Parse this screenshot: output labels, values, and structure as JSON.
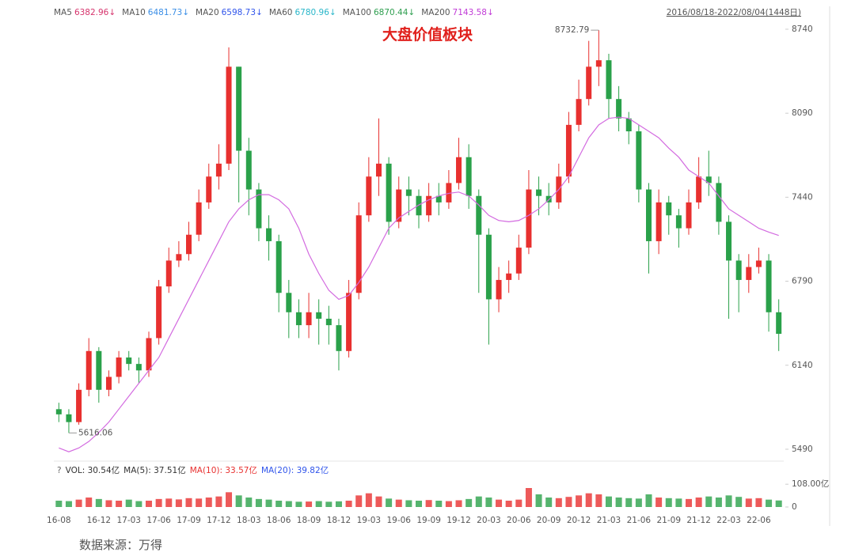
{
  "chart_data": {
    "type": "candlestick",
    "title": "大盘价值板块",
    "date_range": "2016/08/18-2022/08/04(1448日)",
    "source": "数据来源：万得",
    "ma_legend": [
      {
        "name": "MA5",
        "value": "6382.96",
        "trend": "↓",
        "color": "#d6336c"
      },
      {
        "name": "MA10",
        "value": "6481.73",
        "trend": "↓",
        "color": "#3a8ee6"
      },
      {
        "name": "MA20",
        "value": "6598.73",
        "trend": "↓",
        "color": "#2f54eb"
      },
      {
        "name": "MA60",
        "value": "6780.96",
        "trend": "↓",
        "color": "#29b6c9"
      },
      {
        "name": "MA100",
        "value": "6870.44",
        "trend": "↓",
        "color": "#2e9e4f"
      },
      {
        "name": "MA200",
        "value": "7143.58",
        "trend": "↓",
        "color": "#c03ad6"
      }
    ],
    "categories": [
      "16-08",
      null,
      null,
      null,
      "16-12",
      null,
      null,
      "17-03",
      null,
      null,
      "17-06",
      null,
      null,
      "17-09",
      null,
      null,
      "17-12",
      null,
      null,
      "18-03",
      null,
      null,
      "18-06",
      null,
      null,
      "18-09",
      null,
      null,
      "18-12",
      null,
      null,
      "19-03",
      null,
      null,
      "19-06",
      null,
      null,
      "19-09",
      null,
      null,
      "19-12",
      null,
      null,
      "20-03",
      null,
      null,
      "20-06",
      null,
      null,
      "20-09",
      null,
      null,
      "20-12",
      null,
      null,
      "21-03",
      null,
      null,
      "21-06",
      null,
      null,
      "21-09",
      null,
      null,
      "21-12",
      null,
      null,
      "22-03",
      null,
      null,
      "22-06",
      null,
      null
    ],
    "open": [
      5800,
      5760,
      5700,
      5950,
      6250,
      5950,
      6050,
      6200,
      6150,
      6100,
      6350,
      6750,
      6950,
      7000,
      7150,
      7400,
      7600,
      7700,
      8450,
      7800,
      7500,
      7200,
      7100,
      6700,
      6550,
      6450,
      6550,
      6500,
      6450,
      6250,
      6700,
      7300,
      7600,
      7700,
      7250,
      7500,
      7450,
      7300,
      7450,
      7400,
      7550,
      7750,
      7450,
      7150,
      6650,
      6800,
      6850,
      7050,
      7500,
      7450,
      7400,
      7600,
      8000,
      8200,
      8450,
      8500,
      8200,
      8050,
      7950,
      7500,
      7100,
      7400,
      7300,
      7200,
      7400,
      7600,
      7550,
      7250,
      6950,
      6800,
      6900,
      6950,
      6550
    ],
    "high": [
      5850,
      5800,
      6000,
      6350,
      6280,
      6100,
      6250,
      6250,
      6200,
      6400,
      6800,
      7050,
      7100,
      7250,
      7500,
      7700,
      7850,
      8600,
      8450,
      7900,
      7550,
      7300,
      7150,
      6800,
      6650,
      6700,
      6650,
      6600,
      6500,
      6800,
      7400,
      7750,
      8050,
      7750,
      7600,
      7600,
      7500,
      7550,
      7550,
      7650,
      7900,
      7850,
      7500,
      7200,
      6900,
      6950,
      7150,
      7650,
      7600,
      7550,
      7700,
      8100,
      8350,
      8650,
      8732.79,
      8550,
      8300,
      8100,
      8000,
      7550,
      7500,
      7450,
      7350,
      7500,
      7750,
      7800,
      7600,
      7300,
      7000,
      7000,
      7050,
      7000,
      6650
    ],
    "low": [
      5700,
      5616.06,
      5680,
      5900,
      5850,
      5900,
      6000,
      6100,
      6000,
      6050,
      6300,
      6700,
      6900,
      6950,
      7100,
      7350,
      7500,
      7650,
      7400,
      7300,
      7100,
      6950,
      6550,
      6350,
      6350,
      6350,
      6300,
      6300,
      6100,
      6200,
      6650,
      7250,
      7450,
      7150,
      7200,
      7300,
      7200,
      7250,
      7300,
      7350,
      7500,
      7350,
      6700,
      6300,
      6550,
      6700,
      6800,
      7000,
      7300,
      7300,
      7350,
      7550,
      7950,
      8150,
      8300,
      8050,
      7950,
      7850,
      7400,
      6850,
      7000,
      7150,
      7050,
      7150,
      7350,
      7450,
      7150,
      6500,
      6550,
      6700,
      6850,
      6400,
      6250
    ],
    "close": [
      5760,
      5700,
      5950,
      6250,
      5950,
      6050,
      6200,
      6150,
      6100,
      6350,
      6750,
      6950,
      7000,
      7150,
      7400,
      7600,
      7700,
      8450,
      7800,
      7500,
      7200,
      7100,
      6700,
      6550,
      6450,
      6550,
      6500,
      6450,
      6250,
      6700,
      7300,
      7600,
      7700,
      7250,
      7500,
      7450,
      7300,
      7450,
      7400,
      7550,
      7750,
      7450,
      7150,
      6650,
      6800,
      6850,
      7050,
      7500,
      7450,
      7400,
      7600,
      8000,
      8200,
      8450,
      8500,
      8200,
      8050,
      7950,
      7500,
      7100,
      7400,
      7300,
      7200,
      7400,
      7600,
      7550,
      7250,
      6950,
      6800,
      6900,
      6950,
      6550,
      6383
    ],
    "up_color": "#e8302f",
    "down_color": "#2aa14a",
    "ma_lines": [
      {
        "color": "#d36be0",
        "values": [
          5500,
          5470,
          5500,
          5550,
          5620,
          5700,
          5800,
          5900,
          6000,
          6100,
          6200,
          6350,
          6500,
          6650,
          6800,
          6950,
          7100,
          7250,
          7350,
          7420,
          7460,
          7460,
          7420,
          7350,
          7200,
          7000,
          6850,
          6720,
          6650,
          6680,
          6780,
          6900,
          7050,
          7200,
          7280,
          7330,
          7380,
          7420,
          7450,
          7470,
          7480,
          7450,
          7380,
          7300,
          7260,
          7250,
          7260,
          7300,
          7350,
          7420,
          7500,
          7600,
          7750,
          7900,
          8000,
          8050,
          8060,
          8050,
          8000,
          7950,
          7900,
          7820,
          7750,
          7650,
          7600,
          7550,
          7450,
          7350,
          7300,
          7250,
          7200,
          7170,
          7144
        ]
      }
    ],
    "ylim": [
      5398,
      8905
    ],
    "yticks": [
      5490,
      6140,
      6790,
      7440,
      8090,
      8740
    ],
    "volume": {
      "values": [
        30,
        28,
        35,
        45,
        38,
        32,
        30,
        35,
        28,
        30,
        38,
        40,
        36,
        42,
        40,
        45,
        50,
        70,
        55,
        45,
        38,
        35,
        30,
        28,
        25,
        26,
        28,
        25,
        27,
        30,
        55,
        65,
        50,
        40,
        35,
        32,
        30,
        33,
        30,
        28,
        32,
        38,
        50,
        45,
        35,
        30,
        35,
        90,
        60,
        45,
        42,
        48,
        55,
        65,
        60,
        50,
        45,
        42,
        40,
        60,
        45,
        42,
        40,
        38,
        45,
        50,
        45,
        55,
        48,
        40,
        42,
        35,
        31
      ],
      "ylim": [
        0,
        150
      ],
      "yticks": [
        0,
        {
          "value": 108,
          "label": "108.00亿"
        }
      ],
      "legend": [
        {
          "text": "?",
          "color": "#666"
        },
        {
          "text": "VOL: 30.54亿",
          "color": "#333"
        },
        {
          "text": "MA(5): 37.51亿",
          "color": "#333"
        },
        {
          "text": "MA(10): 33.57亿",
          "color": "#e8302f"
        },
        {
          "text": "MA(20): 39.82亿",
          "color": "#2f54eb"
        }
      ]
    }
  }
}
